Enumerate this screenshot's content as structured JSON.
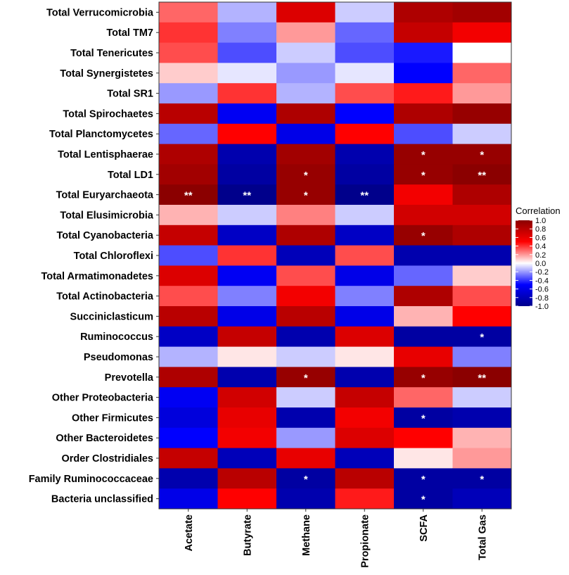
{
  "chart_data": {
    "type": "heatmap",
    "title": "",
    "xlabel": "",
    "ylabel": "",
    "columns": [
      "Acetate",
      "Butyrate",
      "Methane",
      "Propionate",
      "SCFA",
      "Total Gas"
    ],
    "rows": [
      "Total Verrucomicrobia",
      "Total TM7",
      "Total Tenericutes",
      "Total Synergistetes",
      "Total SR1",
      "Total Spirochaetes",
      "Total Planctomycetes",
      "Total Lentisphaerae",
      "Total LD1",
      "Total Euryarchaeota",
      "Total Elusimicrobia",
      "Total Cyanobacteria",
      "Total Chloroflexi",
      "Total Armatimonadetes",
      "Total Actinobacteria",
      "Succiniclasticum",
      "Ruminococcus",
      "Pseudomonas",
      "Prevotella",
      "Other Proteobacteria",
      "Other Firmicutes",
      "Other Bacteroidetes",
      "Order Clostridiales",
      "Family Ruminococcaceae",
      "Bacteria unclassified"
    ],
    "values": [
      [
        0.3,
        -0.15,
        0.65,
        -0.1,
        0.85,
        0.9
      ],
      [
        0.4,
        -0.25,
        0.2,
        -0.3,
        0.75,
        0.55
      ],
      [
        0.35,
        -0.35,
        -0.1,
        -0.35,
        -0.45,
        0.0
      ],
      [
        0.1,
        -0.05,
        -0.2,
        -0.05,
        -0.5,
        0.3
      ],
      [
        -0.2,
        0.4,
        -0.15,
        0.35,
        0.45,
        0.2
      ],
      [
        0.8,
        -0.55,
        0.85,
        -0.5,
        0.85,
        0.95
      ],
      [
        -0.3,
        0.5,
        -0.6,
        0.5,
        -0.35,
        -0.1
      ],
      [
        0.85,
        -0.85,
        0.9,
        -0.85,
        0.95,
        0.95
      ],
      [
        0.9,
        -0.9,
        0.95,
        -0.9,
        0.95,
        1.0
      ],
      [
        1.0,
        -1.0,
        0.95,
        -1.0,
        0.55,
        0.85
      ],
      [
        0.15,
        -0.1,
        0.25,
        -0.1,
        0.7,
        0.7
      ],
      [
        0.75,
        -0.75,
        0.85,
        -0.75,
        0.95,
        0.85
      ],
      [
        -0.35,
        0.4,
        -0.8,
        0.35,
        -0.85,
        -0.85
      ],
      [
        0.65,
        -0.55,
        0.35,
        -0.6,
        -0.3,
        0.1
      ],
      [
        0.35,
        -0.25,
        0.55,
        -0.25,
        0.85,
        0.35
      ],
      [
        0.8,
        -0.6,
        0.8,
        -0.6,
        0.15,
        0.5
      ],
      [
        -0.75,
        0.75,
        -0.85,
        0.65,
        -0.9,
        -0.9
      ],
      [
        -0.15,
        0.05,
        -0.1,
        0.05,
        0.6,
        -0.25
      ],
      [
        0.85,
        -0.85,
        0.95,
        -0.85,
        0.95,
        1.0
      ],
      [
        -0.55,
        0.7,
        -0.1,
        0.75,
        0.3,
        -0.1
      ],
      [
        -0.65,
        0.6,
        -0.85,
        0.55,
        -0.9,
        -0.85
      ],
      [
        -0.5,
        0.55,
        -0.2,
        0.65,
        0.5,
        0.15
      ],
      [
        0.75,
        -0.8,
        0.6,
        -0.8,
        0.05,
        0.2
      ],
      [
        -0.85,
        0.8,
        -0.9,
        0.8,
        -0.9,
        -0.9
      ],
      [
        -0.6,
        0.5,
        -0.85,
        0.45,
        -0.9,
        -0.8
      ]
    ],
    "significance": [
      [
        "",
        "",
        "",
        "",
        "",
        ""
      ],
      [
        "",
        "",
        "",
        "",
        "",
        ""
      ],
      [
        "",
        "",
        "",
        "",
        "",
        ""
      ],
      [
        "",
        "",
        "",
        "",
        "",
        ""
      ],
      [
        "",
        "",
        "",
        "",
        "",
        ""
      ],
      [
        "",
        "",
        "",
        "",
        "",
        ""
      ],
      [
        "",
        "",
        "",
        "",
        "",
        ""
      ],
      [
        "",
        "",
        "",
        "",
        "*",
        "*"
      ],
      [
        "",
        "",
        "*",
        "",
        "*",
        "**"
      ],
      [
        "**",
        "**",
        "*",
        "**",
        "",
        ""
      ],
      [
        "",
        "",
        "",
        "",
        "",
        ""
      ],
      [
        "",
        "",
        "",
        "",
        "*",
        ""
      ],
      [
        "",
        "",
        "",
        "",
        "",
        ""
      ],
      [
        "",
        "",
        "",
        "",
        "",
        ""
      ],
      [
        "",
        "",
        "",
        "",
        "",
        ""
      ],
      [
        "",
        "",
        "",
        "",
        "",
        ""
      ],
      [
        "",
        "",
        "",
        "",
        "",
        "*"
      ],
      [
        "",
        "",
        "",
        "",
        "",
        ""
      ],
      [
        "",
        "",
        "*",
        "",
        "*",
        "**"
      ],
      [
        "",
        "",
        "",
        "",
        "",
        ""
      ],
      [
        "",
        "",
        "",
        "",
        "*",
        ""
      ],
      [
        "",
        "",
        "",
        "",
        "",
        ""
      ],
      [
        "",
        "",
        "",
        "",
        "",
        ""
      ],
      [
        "",
        "",
        "*",
        "",
        "*",
        "*"
      ],
      [
        "",
        "",
        "",
        "",
        "*",
        ""
      ]
    ],
    "color_range": [
      -1.0,
      1.0
    ],
    "colors": {
      "low": "#00008b",
      "mid_low": "#0000ff",
      "mid": "#ffffff",
      "mid_high": "#ff0000",
      "high": "#8b0000"
    },
    "legend": {
      "title": "Correlation",
      "position": "right",
      "ticks": [
        "1.0",
        "0.8",
        "0.6",
        "0.4",
        "0.2",
        "0.0",
        "-0.2",
        "-0.4",
        "-0.6",
        "-0.8",
        "-1.0"
      ]
    }
  }
}
